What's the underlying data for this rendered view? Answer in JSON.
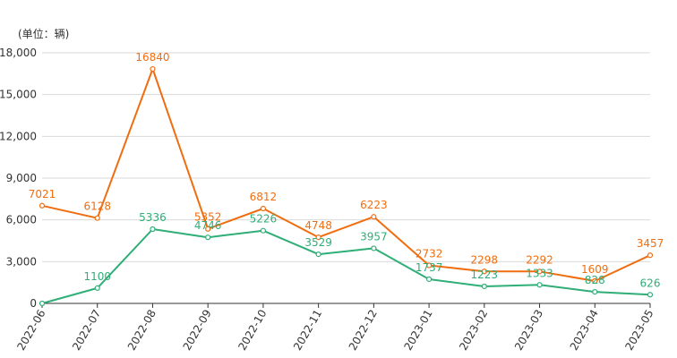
{
  "chart_data": {
    "type": "line",
    "unit_label": "(单位：辆)",
    "categories": [
      "2022-06",
      "2022-07",
      "2022-08",
      "2022-09",
      "2022-10",
      "2022-11",
      "2022-12",
      "2023-01",
      "2023-02",
      "2023-03",
      "2023-04",
      "2023-05"
    ],
    "yticks": [
      0,
      3000,
      6000,
      9000,
      12000,
      15000,
      18000
    ],
    "ytick_labels": [
      "0",
      "3,000",
      "6,000",
      "9,000",
      "12,000",
      "15,000",
      "18,000"
    ],
    "ylim": [
      0,
      18000
    ],
    "grid": true,
    "series": [
      {
        "color": "#f06d0f",
        "values": [
          7021,
          6128,
          16840,
          5352,
          6812,
          4748,
          6223,
          2732,
          2298,
          2292,
          1609,
          3457
        ],
        "labels": [
          "7021",
          "6128",
          "16840",
          "5352",
          "6812",
          "4748",
          "6223",
          "2732",
          "2298",
          "2292",
          "1609",
          "3457"
        ]
      },
      {
        "color": "#2fae78",
        "values": [
          0,
          1100,
          5336,
          4746,
          5226,
          3529,
          3957,
          1737,
          1223,
          1333,
          828,
          626
        ],
        "labels": [
          "",
          "1100",
          "5336",
          "4746",
          "5226",
          "3529",
          "3957",
          "1737",
          "1223",
          "1333",
          "828",
          "626"
        ]
      }
    ]
  }
}
